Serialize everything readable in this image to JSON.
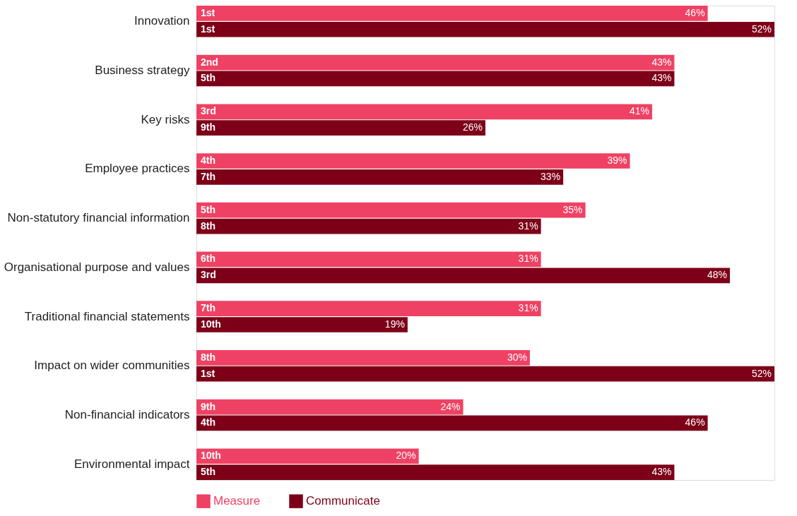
{
  "chart_data": {
    "type": "bar",
    "orientation": "horizontal",
    "categories": [
      "Innovation",
      "Business strategy",
      "Key risks",
      "Employee practices",
      "Non-statutory financial information",
      "Organisational purpose and values",
      "Traditional financial statements",
      "Impact on wider communities",
      "Non-financial indicators",
      "Environmental impact"
    ],
    "series": [
      {
        "name": "Measure",
        "color": "#ef4163",
        "values": [
          46,
          43,
          41,
          39,
          35,
          31,
          31,
          30,
          24,
          20
        ],
        "value_labels": [
          "46%",
          "43%",
          "41%",
          "39%",
          "35%",
          "31%",
          "31%",
          "30%",
          "24%",
          "20%"
        ]
      },
      {
        "name": "Communicate",
        "color": "#7d0018",
        "values": [
          52,
          43,
          26,
          33,
          31,
          48,
          19,
          52,
          46,
          43
        ],
        "value_labels": [
          "52%",
          "43%",
          "26%",
          "33%",
          "31%",
          "48%",
          "19%",
          "52%",
          "46%",
          "43%"
        ]
      }
    ],
    "xlim": [
      0,
      52
    ],
    "tick_labels": "y",
    "grid": false,
    "legend": "bottom left",
    "annotations": [
      {
        "text": "1st",
        "y": "Innovation"
      },
      {
        "text": "1st",
        "y": "Innovation"
      },
      {
        "text": "2nd",
        "y": "Business strategy"
      },
      {
        "text": "5th",
        "y": "Business strategy"
      },
      {
        "text": "3rd",
        "y": "Key risks"
      },
      {
        "text": "9th",
        "y": "Key risks"
      },
      {
        "text": "4th",
        "y": "Employee practices"
      },
      {
        "text": "7th",
        "y": "Employee practices"
      },
      {
        "text": "5th",
        "y": "Non-statutory financial information"
      },
      {
        "text": "8th",
        "y": "Non-statutory financial information"
      },
      {
        "text": "6th",
        "y": "Organisational purpose and values"
      },
      {
        "text": "3rd",
        "y": "Organisational purpose and values"
      },
      {
        "text": "7th",
        "y": "Traditional financial statements"
      },
      {
        "text": "10th",
        "y": "Traditional financial statements"
      },
      {
        "text": "8th",
        "y": "Impact on wider communities"
      },
      {
        "text": "1st",
        "y": "Impact on wider communities"
      },
      {
        "text": "9th",
        "y": "Non-financial indicators"
      },
      {
        "text": "4th",
        "y": "Non-financial indicators"
      },
      {
        "text": "10th",
        "y": "Environmental impact"
      },
      {
        "text": "5th",
        "y": "Environmental impact"
      }
    ]
  }
}
